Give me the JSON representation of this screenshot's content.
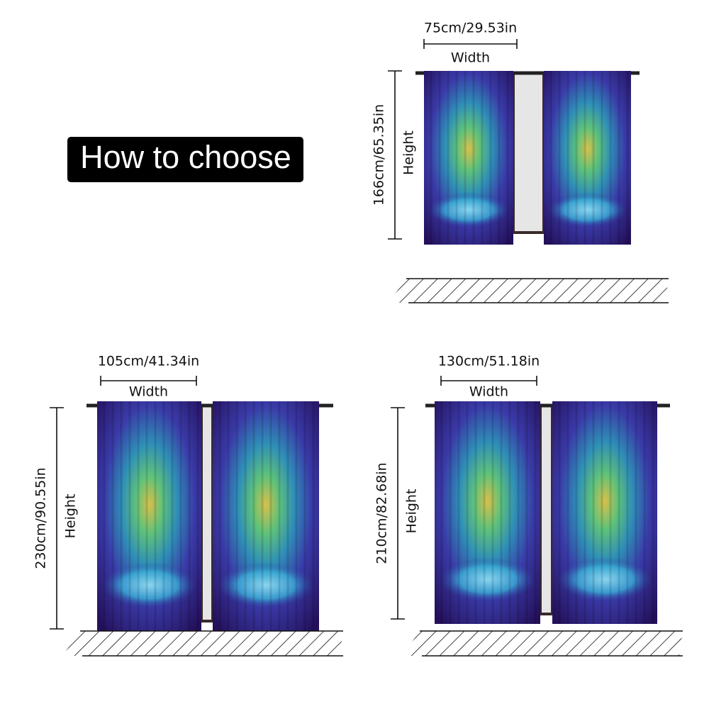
{
  "header": {
    "title": "How to choose"
  },
  "sizes": [
    {
      "width": "75cm/29.53in",
      "width_caption": "Width",
      "height": "166cm/65.35in",
      "height_caption": "Height"
    },
    {
      "width": "105cm/41.34in",
      "width_caption": "Width",
      "height": "230cm/90.55in",
      "height_caption": "Height"
    },
    {
      "width": "130cm/51.18in",
      "width_caption": "Width",
      "height": "210cm/82.68in",
      "height_caption": "Height"
    }
  ]
}
